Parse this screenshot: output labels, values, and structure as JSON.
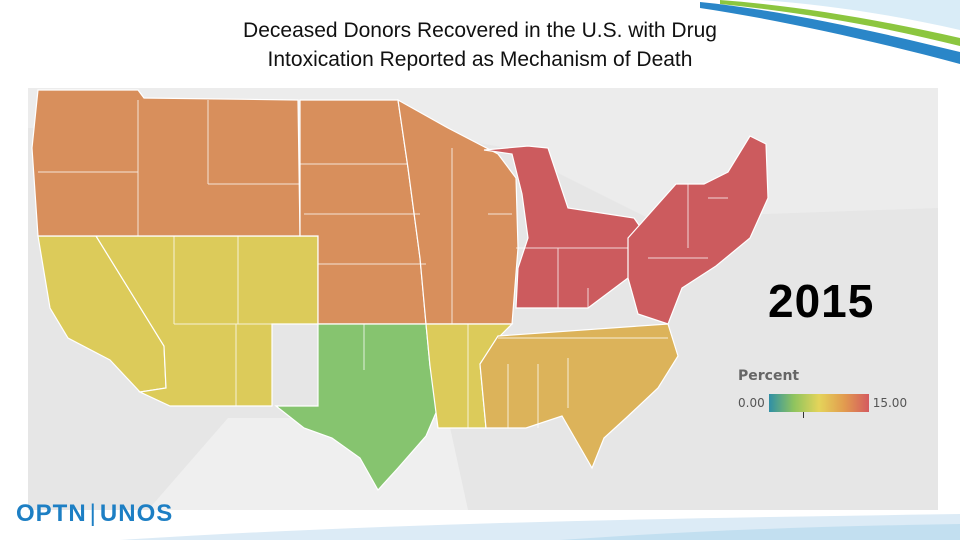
{
  "title": {
    "line1": "Deceased Donors Recovered in the U.S. with Drug",
    "line2": "Intoxication Reported as Mechanism of Death"
  },
  "year": "2015",
  "legend": {
    "title": "Percent",
    "min": "0.00",
    "max": "15.00",
    "colors": [
      "#2f8fa6",
      "#8fc45e",
      "#e4d45a",
      "#e29c4f",
      "#d45a5f"
    ]
  },
  "logo": {
    "left": "OPTN",
    "right": "UNOS"
  },
  "map_colors": {
    "orange": "#d88f5c",
    "yellow": "#dccb5a",
    "yellow_orange": "#dcb35a",
    "green": "#86c46f",
    "red": "#cc5b5e"
  },
  "regions": [
    {
      "name": "west-coast-south",
      "class": "yellow"
    },
    {
      "name": "mountain-southwest",
      "class": "yellow"
    },
    {
      "name": "pacific-northwest",
      "class": "orange"
    },
    {
      "name": "plains",
      "class": "orange"
    },
    {
      "name": "midwest-north",
      "class": "orange"
    },
    {
      "name": "texas-oklahoma",
      "class": "green"
    },
    {
      "name": "south-central",
      "class": "yellow"
    },
    {
      "name": "southeast",
      "class": "yellow_orange"
    },
    {
      "name": "great-lakes",
      "class": "red"
    },
    {
      "name": "northeast",
      "class": "red"
    }
  ]
}
